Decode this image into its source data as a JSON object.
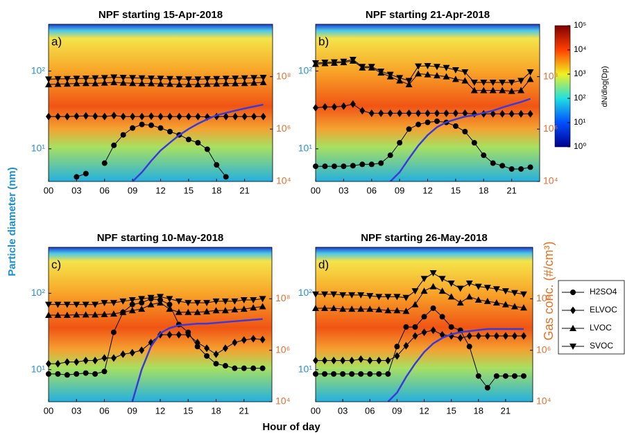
{
  "figure": {
    "xlabel": "Hour of day",
    "ylabel": "Particle diameter (nm)",
    "y2label": "Gas conc. (#/cm³)",
    "colorbar": {
      "label": "dN/dlog(Dp)",
      "lim": [
        1,
        100000
      ],
      "log": true,
      "ticks": [
        {
          "value": 1,
          "label": "10⁰"
        },
        {
          "value": 10,
          "label": "10¹"
        },
        {
          "value": 100,
          "label": "10²"
        },
        {
          "value": 1000,
          "label": "10³"
        },
        {
          "value": 10000,
          "label": "10⁴"
        },
        {
          "value": 100000,
          "label": "10⁵"
        }
      ]
    },
    "legend": {
      "entries": [
        {
          "name": "H2SO4",
          "marker": "circle"
        },
        {
          "name": "ELVOC",
          "marker": "diamond"
        },
        {
          "name": "LVOC",
          "marker": "triangle-up"
        },
        {
          "name": "SVOC",
          "marker": "triangle-down"
        }
      ]
    }
  },
  "chart_data": [
    {
      "type": "line",
      "title": "NPF starting 15-Apr-2018",
      "panel_label": "a)",
      "x": [
        0,
        1,
        2,
        3,
        4,
        5,
        6,
        7,
        8,
        9,
        10,
        11,
        12,
        13,
        14,
        15,
        16,
        17,
        18,
        19,
        20,
        21,
        22,
        23
      ],
      "xlim": [
        0,
        24
      ],
      "xticks": [
        {
          "value": 0,
          "label": "00"
        },
        {
          "value": 3,
          "label": "03"
        },
        {
          "value": 6,
          "label": "06"
        },
        {
          "value": 9,
          "label": "09"
        },
        12,
        15,
        18,
        21
      ],
      "ylim": [
        3.8,
        400
      ],
      "yticks": [
        {
          "value": 10,
          "label": "10¹"
        },
        {
          "value": 100,
          "label": "10²"
        }
      ],
      "log_y": true,
      "y2lim": [
        10000,
        10000000000
      ],
      "y2ticks": [
        {
          "value": 10000,
          "label": "10⁴"
        },
        {
          "value": 1000000,
          "label": "10⁶"
        },
        {
          "value": 100000000,
          "label": "10⁸"
        }
      ],
      "series": [
        {
          "marker": "circle",
          "color": "#000000",
          "axis": "y2",
          "values": [
            null,
            null,
            null,
            15000.0,
            20000.0,
            null,
            50000.0,
            240000.0,
            600000.0,
            1100000.0,
            1500000.0,
            1400000.0,
            1100000.0,
            800000.0,
            600000.0,
            400000.0,
            300000.0,
            170000.0,
            43000.0,
            15000.0,
            null,
            null,
            null,
            null
          ]
        },
        {
          "marker": "diamond",
          "color": "#000000",
          "axis": "y2",
          "values": [
            3000000.0,
            3000000.0,
            3000000.0,
            3100000.0,
            3200000.0,
            3100000.0,
            3000000.0,
            3300000.0,
            3000000.0,
            3000000.0,
            3000000.0,
            3100000.0,
            3000000.0,
            3000000.0,
            3000000.0,
            3000000.0,
            3000000.0,
            2900000.0,
            3000000.0,
            3000000.0,
            3000000.0,
            3000000.0,
            3000000.0,
            3000000.0
          ]
        },
        {
          "marker": "triangle-up",
          "color": "#000000",
          "axis": "y2",
          "values": [
            50000000.0,
            52000000.0,
            53000000.0,
            55000000.0,
            56000000.0,
            55000000.0,
            58000000.0,
            60000000.0,
            58000000.0,
            56000000.0,
            55000000.0,
            55000000.0,
            53000000.0,
            52000000.0,
            50000000.0,
            50000000.0,
            50000000.0,
            52000000.0,
            53000000.0,
            55000000.0,
            55000000.0,
            56000000.0,
            58000000.0,
            60000000.0
          ]
        },
        {
          "marker": "triangle-down",
          "color": "#000000",
          "axis": "y2",
          "values": [
            80000000.0,
            82000000.0,
            83000000.0,
            85000000.0,
            86000000.0,
            88000000.0,
            90000000.0,
            95000000.0,
            92000000.0,
            90000000.0,
            88000000.0,
            86000000.0,
            85000000.0,
            83000000.0,
            82000000.0,
            80000000.0,
            80000000.0,
            82000000.0,
            83000000.0,
            85000000.0,
            86000000.0,
            88000000.0,
            90000000.0,
            92000000.0
          ]
        },
        {
          "marker": "none",
          "color": "#3a3ad8",
          "axis": "y",
          "values": [
            null,
            null,
            null,
            null,
            null,
            null,
            null,
            null,
            null,
            3.8,
            5,
            7,
            9.5,
            12,
            15,
            18,
            21,
            24,
            27,
            29,
            31,
            33,
            35,
            37
          ]
        }
      ]
    },
    {
      "type": "line",
      "title": "NPF starting 21-Apr-2018",
      "panel_label": "b)",
      "x": [
        0,
        1,
        2,
        3,
        4,
        5,
        6,
        7,
        8,
        9,
        10,
        11,
        12,
        13,
        14,
        15,
        16,
        17,
        18,
        19,
        20,
        21,
        22,
        23
      ],
      "xlim": [
        0,
        24
      ],
      "xticks": [
        {
          "value": 0,
          "label": "00"
        },
        {
          "value": 3,
          "label": "03"
        },
        {
          "value": 6,
          "label": "06"
        },
        {
          "value": 9,
          "label": "09"
        },
        12,
        15,
        18,
        21
      ],
      "ylim": [
        3.8,
        400
      ],
      "yticks": [
        {
          "value": 10,
          "label": "10¹"
        },
        {
          "value": 100,
          "label": "10²"
        }
      ],
      "log_y": true,
      "y2lim": [
        10000,
        10000000000
      ],
      "y2ticks": [
        {
          "value": 10000,
          "label": "10⁴"
        },
        {
          "value": 1000000,
          "label": "10⁶"
        },
        {
          "value": 100000000,
          "label": "10⁸"
        }
      ],
      "series": [
        {
          "marker": "circle",
          "color": "#000000",
          "axis": "y2",
          "values": [
            38000.0,
            38000.0,
            38000.0,
            38000.0,
            40000.0,
            45000.0,
            45000.0,
            50000.0,
            100000.0,
            300000.0,
            1000000.0,
            1500000.0,
            1800000.0,
            2000000.0,
            1800000.0,
            1300000.0,
            800000.0,
            300000.0,
            100000.0,
            50000.0,
            40000.0,
            30000.0,
            30000.0,
            35000.0
          ]
        },
        {
          "marker": "diamond",
          "color": "#000000",
          "axis": "y2",
          "values": [
            6500000.0,
            7000000.0,
            7000000.0,
            7500000.0,
            9000000.0,
            5000000.0,
            4000000.0,
            4000000.0,
            4000000.0,
            4000000.0,
            4000000.0,
            4000000.0,
            4000000.0,
            4000000.0,
            4000000.0,
            4000000.0,
            4000000.0,
            3800000.0,
            3800000.0,
            3800000.0,
            3800000.0,
            3800000.0,
            3800000.0,
            3800000.0
          ]
        },
        {
          "marker": "triangle-up",
          "color": "#000000",
          "axis": "y2",
          "values": [
            300000000.0,
            320000000.0,
            330000000.0,
            350000000.0,
            400000000.0,
            220000000.0,
            220000000.0,
            140000000.0,
            100000000.0,
            70000000.0,
            50000000.0,
            130000000.0,
            120000000.0,
            110000000.0,
            100000000.0,
            80000000.0,
            70000000.0,
            30000000.0,
            30000000.0,
            30000000.0,
            30000000.0,
            28000000.0,
            30000000.0,
            80000000.0
          ]
        },
        {
          "marker": "triangle-down",
          "color": "#000000",
          "axis": "y2",
          "values": [
            330000000.0,
            350000000.0,
            360000000.0,
            380000000.0,
            450000000.0,
            240000000.0,
            240000000.0,
            160000000.0,
            120000000.0,
            90000000.0,
            70000000.0,
            250000000.0,
            260000000.0,
            240000000.0,
            220000000.0,
            180000000.0,
            150000000.0,
            60000000.0,
            60000000.0,
            60000000.0,
            60000000.0,
            60000000.0,
            70000000.0,
            150000000.0
          ]
        },
        {
          "marker": "none",
          "color": "#3a3ad8",
          "axis": "y",
          "values": [
            null,
            null,
            null,
            null,
            null,
            null,
            null,
            null,
            3.8,
            5,
            7.5,
            11,
            15,
            19,
            22,
            24,
            26,
            27,
            29,
            31,
            34,
            37,
            40,
            44
          ]
        }
      ]
    },
    {
      "type": "line",
      "title": "NPF starting 10-May-2018",
      "panel_label": "c)",
      "x": [
        0,
        1,
        2,
        3,
        4,
        5,
        6,
        7,
        8,
        9,
        10,
        11,
        12,
        13,
        14,
        15,
        16,
        17,
        18,
        19,
        20,
        21,
        22,
        23
      ],
      "xlim": [
        0,
        24
      ],
      "xticks": [
        {
          "value": 0,
          "label": "00"
        },
        {
          "value": 3,
          "label": "03"
        },
        {
          "value": 6,
          "label": "06"
        },
        {
          "value": 9,
          "label": "09"
        },
        12,
        15,
        18,
        21
      ],
      "ylim": [
        3.8,
        400
      ],
      "yticks": [
        {
          "value": 10,
          "label": "10¹"
        },
        {
          "value": 100,
          "label": "10²"
        }
      ],
      "log_y": true,
      "y2lim": [
        10000,
        10000000000
      ],
      "y2ticks": [
        {
          "value": 10000,
          "label": "10⁴"
        },
        {
          "value": 1000000,
          "label": "10⁶"
        },
        {
          "value": 100000000,
          "label": "10⁸"
        }
      ],
      "series": [
        {
          "marker": "circle",
          "color": "#000000",
          "axis": "y2",
          "values": [
            120000.0,
            120000.0,
            110000.0,
            120000.0,
            130000.0,
            120000.0,
            150000.0,
            5000000.0,
            30000000.0,
            60000000.0,
            70000000.0,
            100000000.0,
            90000000.0,
            60000000.0,
            10000000.0,
            5000000.0,
            1400000.0,
            600000.0,
            300000.0,
            250000.0,
            200000.0,
            200000.0,
            200000.0,
            200000.0
          ]
        },
        {
          "marker": "diamond",
          "color": "#000000",
          "axis": "y2",
          "values": [
            300000.0,
            300000.0,
            350000.0,
            350000.0,
            400000.0,
            400000.0,
            500000.0,
            500000.0,
            700000.0,
            800000.0,
            1000000.0,
            2000000.0,
            4000000.0,
            4000000.0,
            4000000.0,
            4000000.0,
            2000000.0,
            1200000.0,
            700000.0,
            1200000.0,
            2000000.0,
            2500000.0,
            2800000.0,
            2600000.0
          ]
        },
        {
          "marker": "triangle-up",
          "color": "#000000",
          "axis": "y2",
          "values": [
            23000000.0,
            23000000.0,
            23000000.0,
            24000000.0,
            24000000.0,
            24000000.0,
            25000000.0,
            26000000.0,
            30000000.0,
            35000000.0,
            40000000.0,
            60000000.0,
            70000000.0,
            40000000.0,
            30000000.0,
            30000000.0,
            30000000.0,
            32000000.0,
            35000000.0,
            35000000.0,
            38000000.0,
            40000000.0,
            45000000.0,
            50000000.0
          ]
        },
        {
          "marker": "triangle-down",
          "color": "#000000",
          "axis": "y2",
          "values": [
            60000000.0,
            60000000.0,
            60000000.0,
            60000000.0,
            60000000.0,
            60000000.0,
            70000000.0,
            70000000.0,
            80000000.0,
            90000000.0,
            100000000.0,
            110000000.0,
            120000000.0,
            100000000.0,
            80000000.0,
            70000000.0,
            70000000.0,
            70000000.0,
            80000000.0,
            80000000.0,
            80000000.0,
            90000000.0,
            90000000.0,
            100000000.0
          ]
        },
        {
          "marker": "none",
          "color": "#3a3ad8",
          "axis": "y",
          "values": [
            null,
            null,
            null,
            null,
            null,
            null,
            null,
            null,
            null,
            3.8,
            10,
            20,
            30,
            35,
            38,
            39,
            40,
            40,
            41,
            42,
            43,
            44,
            45,
            46
          ]
        }
      ]
    },
    {
      "type": "line",
      "title": "NPF starting 26-May-2018",
      "panel_label": "d)",
      "x": [
        0,
        1,
        2,
        3,
        4,
        5,
        6,
        7,
        8,
        9,
        10,
        11,
        12,
        13,
        14,
        15,
        16,
        17,
        18,
        19,
        20,
        21,
        22,
        23
      ],
      "xlim": [
        0,
        24
      ],
      "xticks": [
        {
          "value": 0,
          "label": "00"
        },
        {
          "value": 3,
          "label": "03"
        },
        {
          "value": 6,
          "label": "06"
        },
        {
          "value": 9,
          "label": "09"
        },
        12,
        15,
        18,
        21
      ],
      "ylim": [
        3.8,
        400
      ],
      "yticks": [
        {
          "value": 10,
          "label": "10¹"
        },
        {
          "value": 100,
          "label": "10²"
        }
      ],
      "log_y": true,
      "y2lim": [
        10000,
        10000000000
      ],
      "y2ticks": [
        {
          "value": 10000,
          "label": "10⁴"
        },
        {
          "value": 1000000,
          "label": "10⁶"
        },
        {
          "value": 100000000,
          "label": "10⁸"
        }
      ],
      "series": [
        {
          "marker": "circle",
          "color": "#000000",
          "axis": "y2",
          "values": [
            120000.0,
            120000.0,
            120000.0,
            120000.0,
            120000.0,
            120000.0,
            120000.0,
            120000.0,
            120000.0,
            1400000.0,
            8000000.0,
            8000000.0,
            20000000.0,
            43000000.0,
            20000000.0,
            8000000.0,
            6000000.0,
            1400000.0,
            100000.0,
            35000.0,
            100000.0,
            100000.0,
            100000.0,
            100000.0
          ]
        },
        {
          "marker": "diamond",
          "color": "#000000",
          "axis": "y2",
          "values": [
            400000.0,
            400000.0,
            400000.0,
            400000.0,
            400000.0,
            450000.0,
            400000.0,
            400000.0,
            400000.0,
            600000.0,
            1500000.0,
            3600000.0,
            5000000.0,
            6000000.0,
            4000000.0,
            3600000.0,
            3000000.0,
            3600000.0,
            3600000.0,
            3600000.0,
            3600000.0,
            3600000.0,
            3600000.0,
            3600000.0
          ]
        },
        {
          "marker": "triangle-up",
          "color": "#000000",
          "axis": "y2",
          "values": [
            43000000.0,
            43000000.0,
            43000000.0,
            40000000.0,
            40000000.0,
            40000000.0,
            40000000.0,
            38000000.0,
            35000000.0,
            35000000.0,
            33000000.0,
            60000000.0,
            200000000.0,
            300000000.0,
            200000000.0,
            120000000.0,
            70000000.0,
            120000000.0,
            90000000.0,
            80000000.0,
            70000000.0,
            60000000.0,
            50000000.0,
            45000000.0
          ]
        },
        {
          "marker": "triangle-down",
          "color": "#000000",
          "axis": "y2",
          "values": [
            150000000.0,
            150000000.0,
            150000000.0,
            140000000.0,
            140000000.0,
            140000000.0,
            130000000.0,
            120000000.0,
            120000000.0,
            120000000.0,
            110000000.0,
            200000000.0,
            600000000.0,
            1000000000.0,
            600000000.0,
            400000000.0,
            250000000.0,
            400000000.0,
            300000000.0,
            270000000.0,
            240000000.0,
            200000000.0,
            170000000.0,
            150000000.0
          ]
        },
        {
          "marker": "none",
          "color": "#3a3ad8",
          "axis": "y",
          "values": [
            null,
            null,
            null,
            null,
            null,
            null,
            null,
            null,
            3.8,
            5,
            8,
            12,
            17,
            22,
            26,
            29,
            31,
            32,
            33,
            34,
            34,
            34,
            34,
            34
          ]
        }
      ]
    }
  ]
}
